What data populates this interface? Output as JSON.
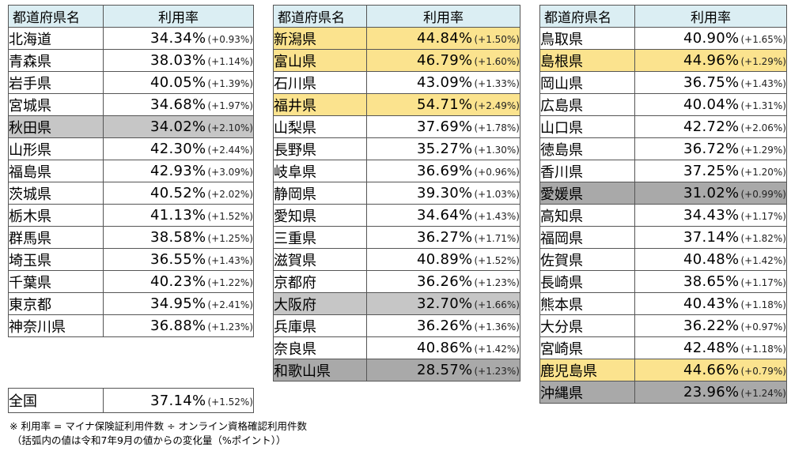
{
  "header": {
    "pref": "都道府県名",
    "rate": "利用率"
  },
  "col1": [
    {
      "pref": "北海道",
      "rate": "34.34%",
      "change": "(+0.93%)",
      "hl": ""
    },
    {
      "pref": "青森県",
      "rate": "38.03%",
      "change": "(+1.14%)",
      "hl": ""
    },
    {
      "pref": "岩手県",
      "rate": "40.05%",
      "change": "(+1.39%)",
      "hl": ""
    },
    {
      "pref": "宮城県",
      "rate": "34.68%",
      "change": "(+1.97%)",
      "hl": ""
    },
    {
      "pref": "秋田県",
      "rate": "34.02%",
      "change": "(+2.10%)",
      "hl": "lo"
    },
    {
      "pref": "山形県",
      "rate": "42.30%",
      "change": "(+2.44%)",
      "hl": ""
    },
    {
      "pref": "福島県",
      "rate": "42.93%",
      "change": "(+3.09%)",
      "hl": ""
    },
    {
      "pref": "茨城県",
      "rate": "40.52%",
      "change": "(+2.02%)",
      "hl": ""
    },
    {
      "pref": "栃木県",
      "rate": "41.13%",
      "change": "(+1.52%)",
      "hl": ""
    },
    {
      "pref": "群馬県",
      "rate": "38.58%",
      "change": "(+1.25%)",
      "hl": ""
    },
    {
      "pref": "埼玉県",
      "rate": "36.55%",
      "change": "(+1.43%)",
      "hl": ""
    },
    {
      "pref": "千葉県",
      "rate": "40.23%",
      "change": "(+1.22%)",
      "hl": ""
    },
    {
      "pref": "東京都",
      "rate": "34.95%",
      "change": "(+2.41%)",
      "hl": ""
    },
    {
      "pref": "神奈川県",
      "rate": "36.88%",
      "change": "(+1.23%)",
      "hl": ""
    }
  ],
  "col2": [
    {
      "pref": "新潟県",
      "rate": "44.84%",
      "change": "(+1.50%)",
      "hl": "hi"
    },
    {
      "pref": "富山県",
      "rate": "46.79%",
      "change": "(+1.60%)",
      "hl": "hi"
    },
    {
      "pref": "石川県",
      "rate": "43.09%",
      "change": "(+1.33%)",
      "hl": ""
    },
    {
      "pref": "福井県",
      "rate": "54.71%",
      "change": "(+2.49%)",
      "hl": "hi"
    },
    {
      "pref": "山梨県",
      "rate": "37.69%",
      "change": "(+1.78%)",
      "hl": ""
    },
    {
      "pref": "長野県",
      "rate": "35.27%",
      "change": "(+1.30%)",
      "hl": ""
    },
    {
      "pref": "岐阜県",
      "rate": "36.69%",
      "change": "(+0.96%)",
      "hl": ""
    },
    {
      "pref": "静岡県",
      "rate": "39.30%",
      "change": "(+1.03%)",
      "hl": ""
    },
    {
      "pref": "愛知県",
      "rate": "34.64%",
      "change": "(+1.43%)",
      "hl": ""
    },
    {
      "pref": "三重県",
      "rate": "36.27%",
      "change": "(+1.71%)",
      "hl": ""
    },
    {
      "pref": "滋賀県",
      "rate": "40.89%",
      "change": "(+1.52%)",
      "hl": ""
    },
    {
      "pref": "京都府",
      "rate": "36.26%",
      "change": "(+1.23%)",
      "hl": ""
    },
    {
      "pref": "大阪府",
      "rate": "32.70%",
      "change": "(+1.66%)",
      "hl": "lo"
    },
    {
      "pref": "兵庫県",
      "rate": "36.26%",
      "change": "(+1.36%)",
      "hl": ""
    },
    {
      "pref": "奈良県",
      "rate": "40.86%",
      "change": "(+1.42%)",
      "hl": ""
    },
    {
      "pref": "和歌山県",
      "rate": "28.57%",
      "change": "(+1.23%)",
      "hl": "lo2"
    }
  ],
  "col3": [
    {
      "pref": "鳥取県",
      "rate": "40.90%",
      "change": "(+1.65%)",
      "hl": ""
    },
    {
      "pref": "島根県",
      "rate": "44.96%",
      "change": "(+1.29%)",
      "hl": "hi"
    },
    {
      "pref": "岡山県",
      "rate": "36.75%",
      "change": "(+1.43%)",
      "hl": ""
    },
    {
      "pref": "広島県",
      "rate": "40.04%",
      "change": "(+1.31%)",
      "hl": ""
    },
    {
      "pref": "山口県",
      "rate": "42.72%",
      "change": "(+2.06%)",
      "hl": ""
    },
    {
      "pref": "徳島県",
      "rate": "36.72%",
      "change": "(+1.29%)",
      "hl": ""
    },
    {
      "pref": "香川県",
      "rate": "37.25%",
      "change": "(+1.20%)",
      "hl": ""
    },
    {
      "pref": "愛媛県",
      "rate": "31.02%",
      "change": "(+0.99%)",
      "hl": "lo2"
    },
    {
      "pref": "高知県",
      "rate": "34.43%",
      "change": "(+1.17%)",
      "hl": ""
    },
    {
      "pref": "福岡県",
      "rate": "37.14%",
      "change": "(+1.82%)",
      "hl": ""
    },
    {
      "pref": "佐賀県",
      "rate": "40.48%",
      "change": "(+1.42%)",
      "hl": ""
    },
    {
      "pref": "長崎県",
      "rate": "38.65%",
      "change": "(+1.17%)",
      "hl": ""
    },
    {
      "pref": "熊本県",
      "rate": "40.43%",
      "change": "(+1.18%)",
      "hl": ""
    },
    {
      "pref": "大分県",
      "rate": "36.22%",
      "change": "(+0.97%)",
      "hl": ""
    },
    {
      "pref": "宮崎県",
      "rate": "42.48%",
      "change": "(+1.18%)",
      "hl": ""
    },
    {
      "pref": "鹿児島県",
      "rate": "44.66%",
      "change": "(+0.79%)",
      "hl": "hi"
    },
    {
      "pref": "沖縄県",
      "rate": "23.96%",
      "change": "(+1.24%)",
      "hl": "lo2"
    }
  ],
  "national": {
    "pref": "全国",
    "rate": "37.14%",
    "change": "(+1.52%)"
  },
  "notes": {
    "line1": "※ 利用率 = マイナ保険証利用件数 ÷ オンライン資格確認利用件数",
    "line2": "（括弧内の値は令和7年9月の値からの変化量（%ポイント））"
  },
  "colors": {
    "header_bg": "#dbeef3",
    "highlight_high": "#fbe38e",
    "highlight_low": "#c6c6c6",
    "highlight_lowest": "#a9a9a9"
  }
}
